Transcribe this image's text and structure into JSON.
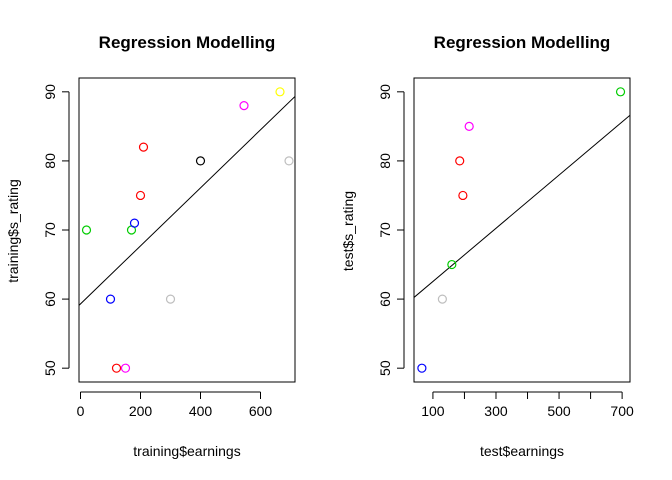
{
  "chart_data": [
    {
      "type": "scatter",
      "title": "Regression Modelling",
      "xlabel": "training$earnings",
      "ylabel": "training$s_rating",
      "xlim": [
        -5,
        715
      ],
      "ylim": [
        48,
        92
      ],
      "x_ticks": [
        0,
        200,
        400,
        600
      ],
      "x_tick_labels": [
        "0",
        "200",
        "400",
        "600"
      ],
      "y_ticks": [
        50,
        60,
        70,
        80,
        90
      ],
      "y_tick_labels": [
        "50",
        "60",
        "70",
        "80",
        "90"
      ],
      "grid": false,
      "legend": "none",
      "points": [
        {
          "x": 20,
          "y": 70,
          "color": "#00cc00"
        },
        {
          "x": 100,
          "y": 60,
          "color": "#0000ff"
        },
        {
          "x": 120,
          "y": 50,
          "color": "#ff0000"
        },
        {
          "x": 150,
          "y": 50,
          "color": "#ff00ff"
        },
        {
          "x": 170,
          "y": 70,
          "color": "#00cc00"
        },
        {
          "x": 180,
          "y": 71,
          "color": "#0000ff"
        },
        {
          "x": 200,
          "y": 75,
          "color": "#ff0000"
        },
        {
          "x": 210,
          "y": 82,
          "color": "#ff0000"
        },
        {
          "x": 300,
          "y": 60,
          "color": "#bebebe"
        },
        {
          "x": 400,
          "y": 80,
          "color": "#000000"
        },
        {
          "x": 545,
          "y": 88,
          "color": "#ff00ff"
        },
        {
          "x": 665,
          "y": 90,
          "color": "#ffff00"
        },
        {
          "x": 695,
          "y": 80,
          "color": "#bebebe"
        }
      ],
      "regression_line": {
        "intercept": 59.3,
        "slope": 0.042
      }
    },
    {
      "type": "scatter",
      "title": "Regression Modelling",
      "xlabel": "test$earnings",
      "ylabel": "test$s_rating",
      "xlim": [
        40,
        725
      ],
      "ylim": [
        48,
        92
      ],
      "x_ticks": [
        100,
        200,
        300,
        400,
        500,
        600,
        700
      ],
      "x_tick_labels": [
        "100",
        "",
        "300",
        "",
        "500",
        "",
        "700"
      ],
      "y_ticks": [
        50,
        60,
        70,
        80,
        90
      ],
      "y_tick_labels": [
        "50",
        "60",
        "70",
        "80",
        "90"
      ],
      "grid": false,
      "legend": "none",
      "points": [
        {
          "x": 65,
          "y": 50,
          "color": "#0000ff"
        },
        {
          "x": 130,
          "y": 60,
          "color": "#bebebe"
        },
        {
          "x": 160,
          "y": 65,
          "color": "#00cc00"
        },
        {
          "x": 185,
          "y": 80,
          "color": "#ff0000"
        },
        {
          "x": 195,
          "y": 75,
          "color": "#ff0000"
        },
        {
          "x": 215,
          "y": 85,
          "color": "#ff00ff"
        },
        {
          "x": 695,
          "y": 90,
          "color": "#00cc00"
        }
      ],
      "regression_line": {
        "intercept": 58.7,
        "slope": 0.0385
      }
    }
  ]
}
